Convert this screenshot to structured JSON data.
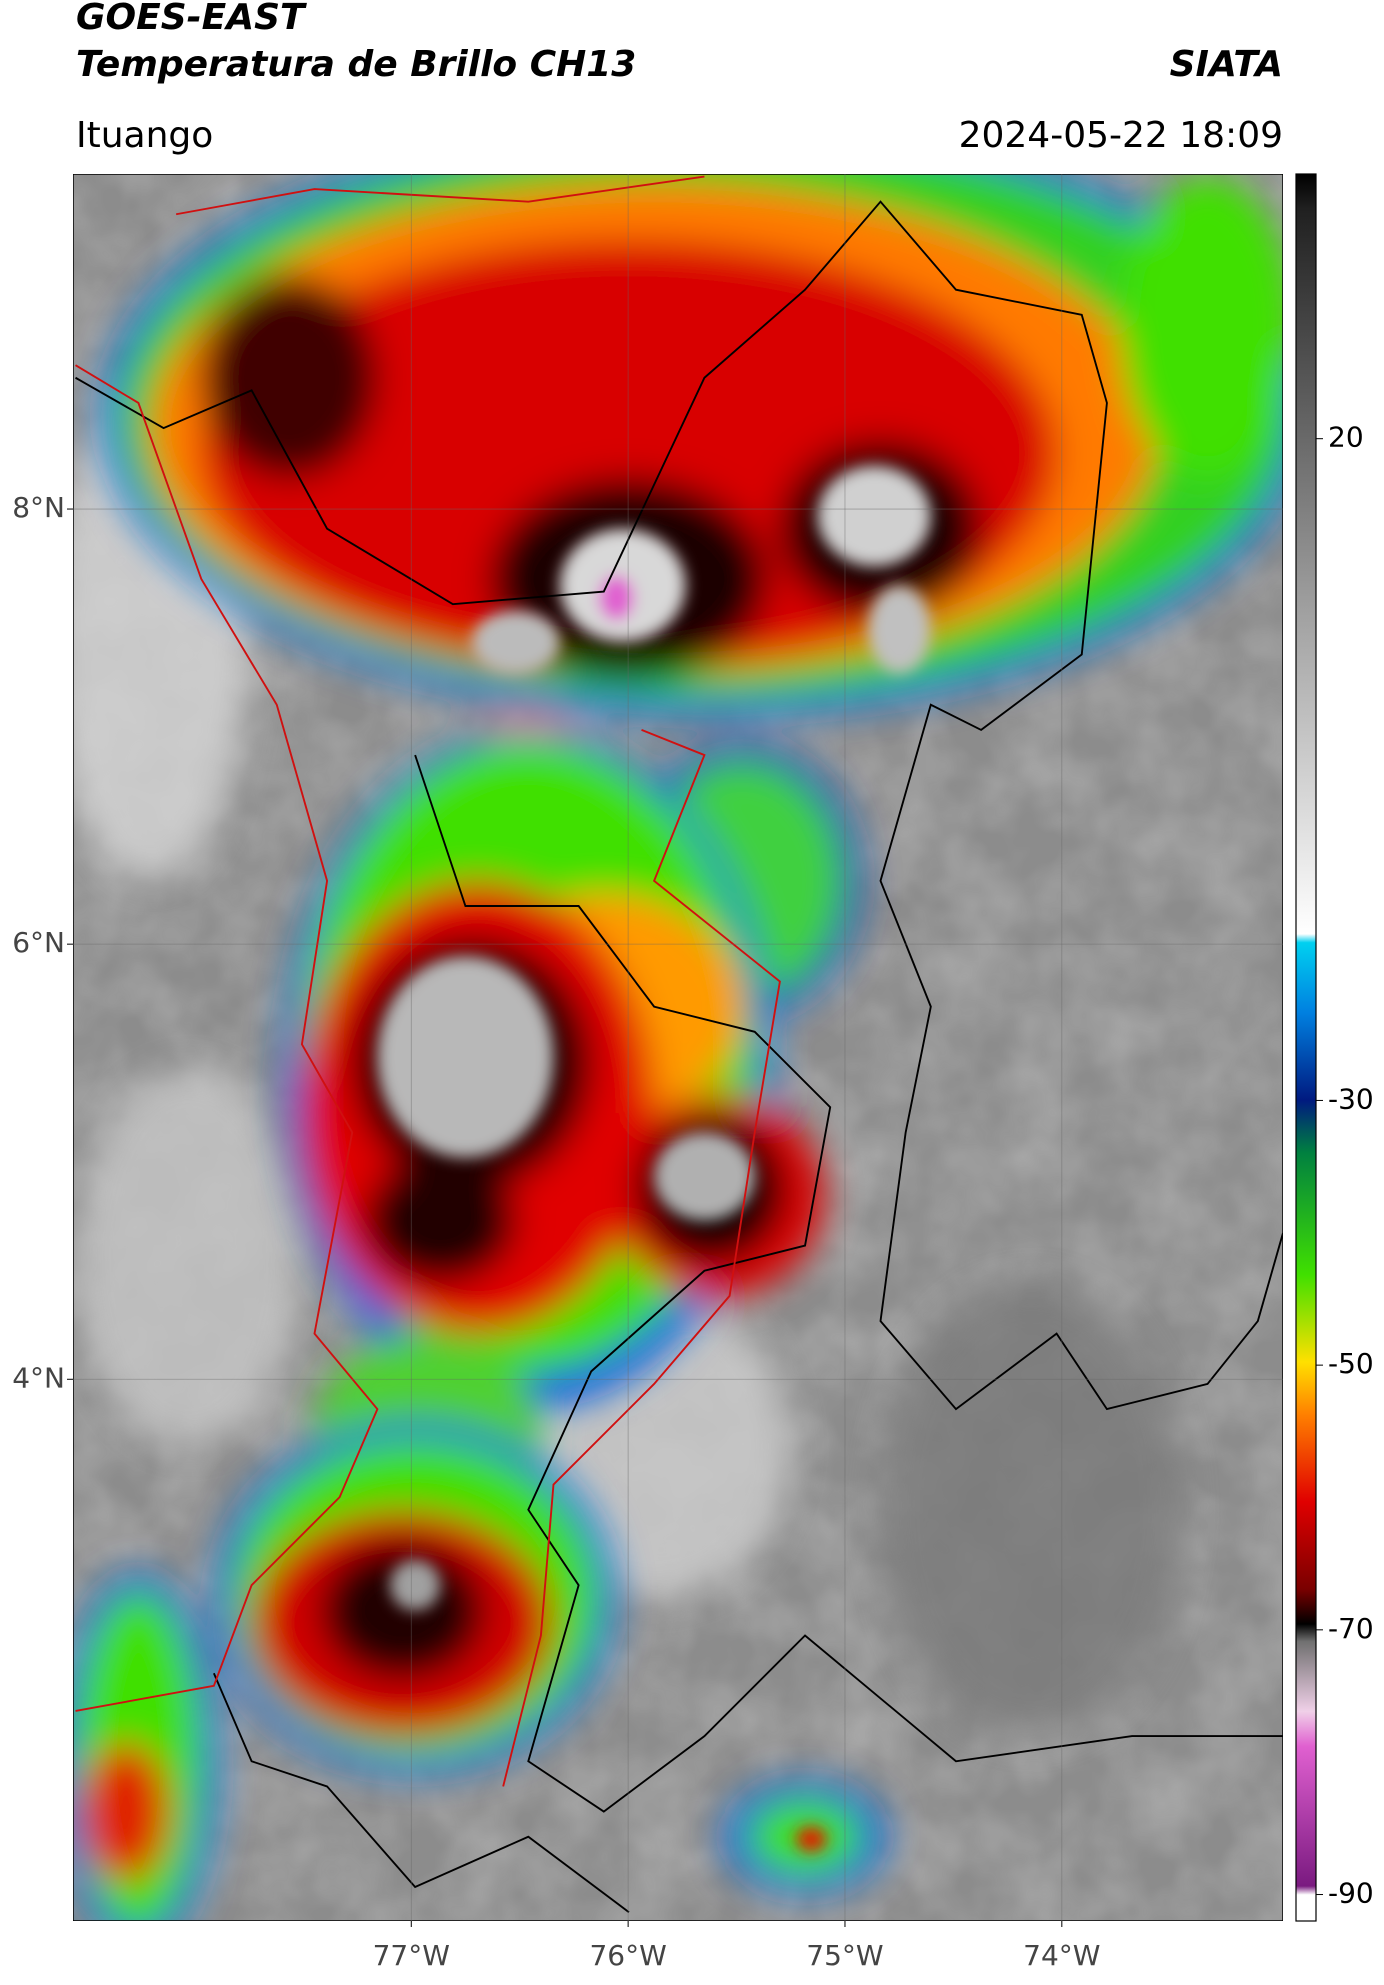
{
  "map": {
    "title": "GOES-EAST",
    "subtitle": "Temperatura de Brillo CH13",
    "source": "SIATA",
    "location": "Ituango",
    "datetime": "2024-05-22 18:09",
    "xlim": [
      -78.56,
      -72.98
    ],
    "ylim": [
      1.51,
      9.54
    ],
    "xticks": [
      {
        "value": -77,
        "label": "77°W"
      },
      {
        "value": -76,
        "label": "76°W"
      },
      {
        "value": -75,
        "label": "75°W"
      },
      {
        "value": -74,
        "label": "74°W"
      }
    ],
    "yticks": [
      {
        "value": 8,
        "label": "8°N"
      },
      {
        "value": 6,
        "label": "6°N"
      },
      {
        "value": 4,
        "label": "4°N"
      }
    ],
    "colorbar": {
      "lim": [
        -92,
        40
      ],
      "ticks": [
        20,
        -30,
        -50,
        -70,
        -90
      ]
    }
  }
}
